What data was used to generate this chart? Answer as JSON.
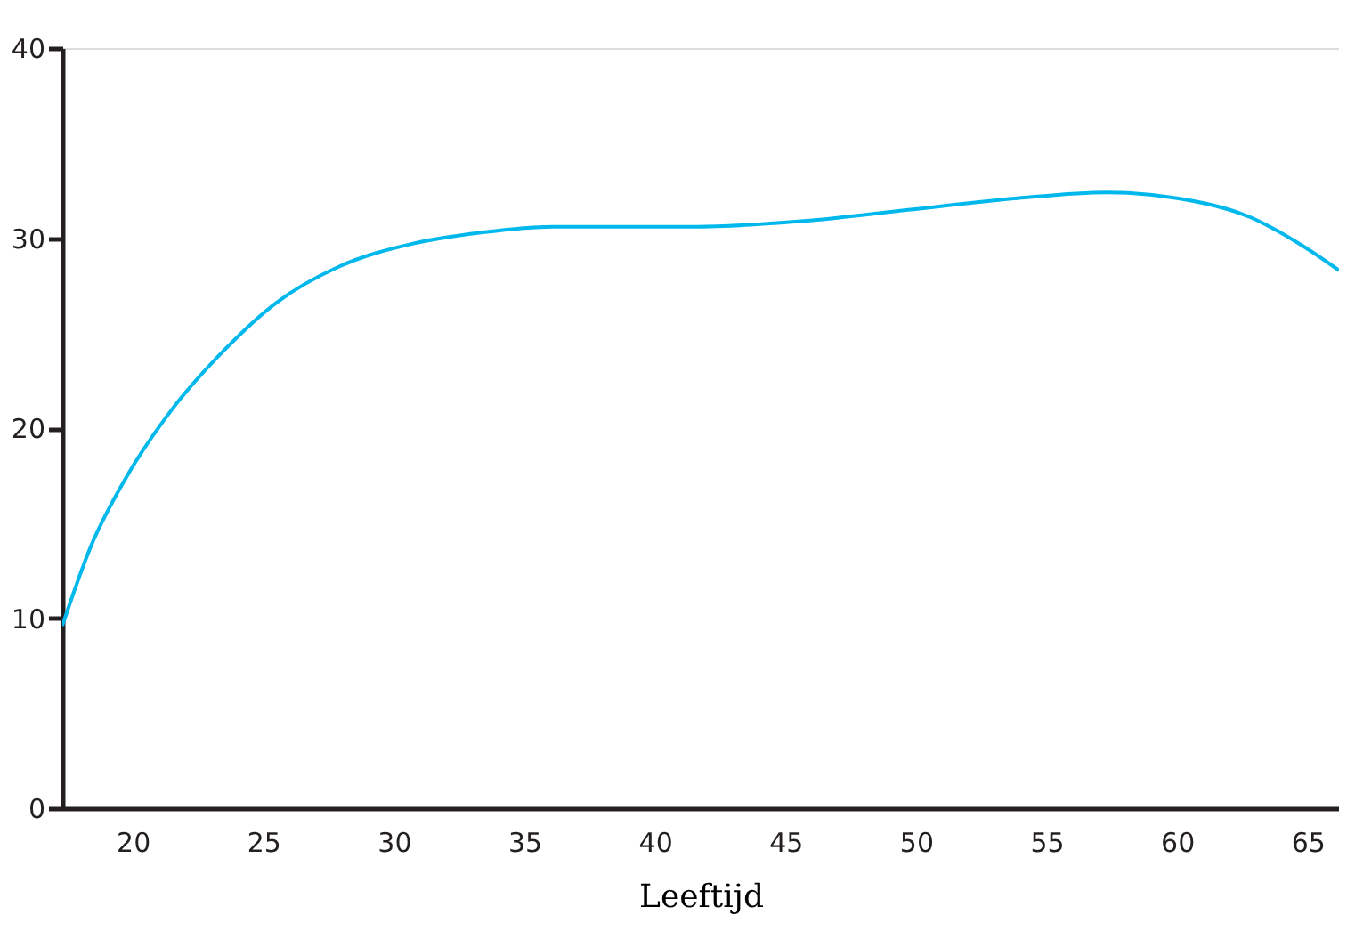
{
  "chart_data": {
    "type": "line",
    "xlabel": "Leeftijd",
    "x": [
      17.3,
      18.4,
      19.7,
      21.4,
      23.5,
      25.5,
      27.9,
      30.7,
      33.4,
      36.1,
      41.6,
      45.7,
      49.8,
      53.9,
      57.3,
      60.0,
      62.8,
      64.8,
      66.2
    ],
    "series": [
      {
        "color": "#00b8ec",
        "values": [
          9.6,
          13.8,
          17.3,
          20.8,
          24.1,
          26.6,
          28.5,
          29.7,
          30.3,
          30.6,
          30.6,
          30.9,
          31.5,
          32.1,
          32.4,
          32.1,
          31.1,
          29.6,
          28.3
        ]
      }
    ],
    "xlim": [
      17.3,
      66.2
    ],
    "xticks": [
      20,
      25,
      30,
      35,
      40,
      45,
      50,
      55,
      60,
      65
    ],
    "ylim": [
      0,
      40
    ],
    "yticks": [
      0,
      10,
      20,
      30,
      40
    ],
    "grid": false,
    "legend": false,
    "marker": "none",
    "line_style": "solid"
  }
}
